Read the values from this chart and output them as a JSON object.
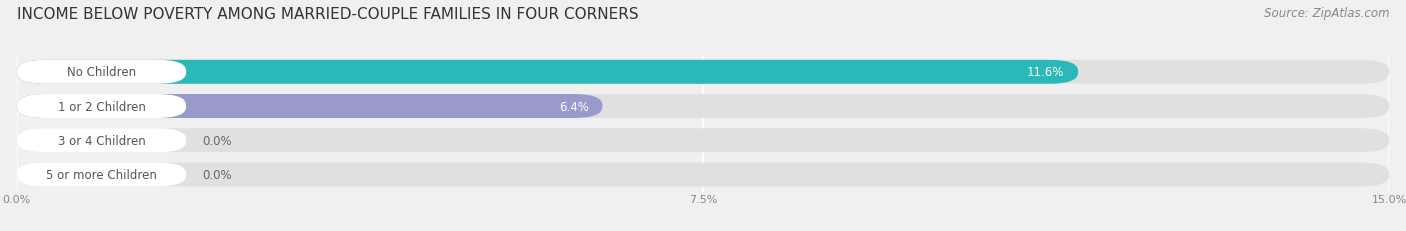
{
  "title": "INCOME BELOW POVERTY AMONG MARRIED-COUPLE FAMILIES IN FOUR CORNERS",
  "source": "Source: ZipAtlas.com",
  "categories": [
    "No Children",
    "1 or 2 Children",
    "3 or 4 Children",
    "5 or more Children"
  ],
  "values": [
    11.6,
    6.4,
    0.0,
    0.0
  ],
  "bar_colors": [
    "#2bb8b8",
    "#9999cc",
    "#f08888",
    "#f5c888"
  ],
  "xlim": [
    0,
    15.0
  ],
  "xticks": [
    0.0,
    7.5,
    15.0
  ],
  "xtick_labels": [
    "0.0%",
    "7.5%",
    "15.0%"
  ],
  "background_color": "#f0f0f0",
  "bar_bg_color": "#e0e0e0",
  "title_fontsize": 11,
  "source_fontsize": 8.5,
  "label_fontsize": 8.5,
  "value_fontsize": 8.5
}
